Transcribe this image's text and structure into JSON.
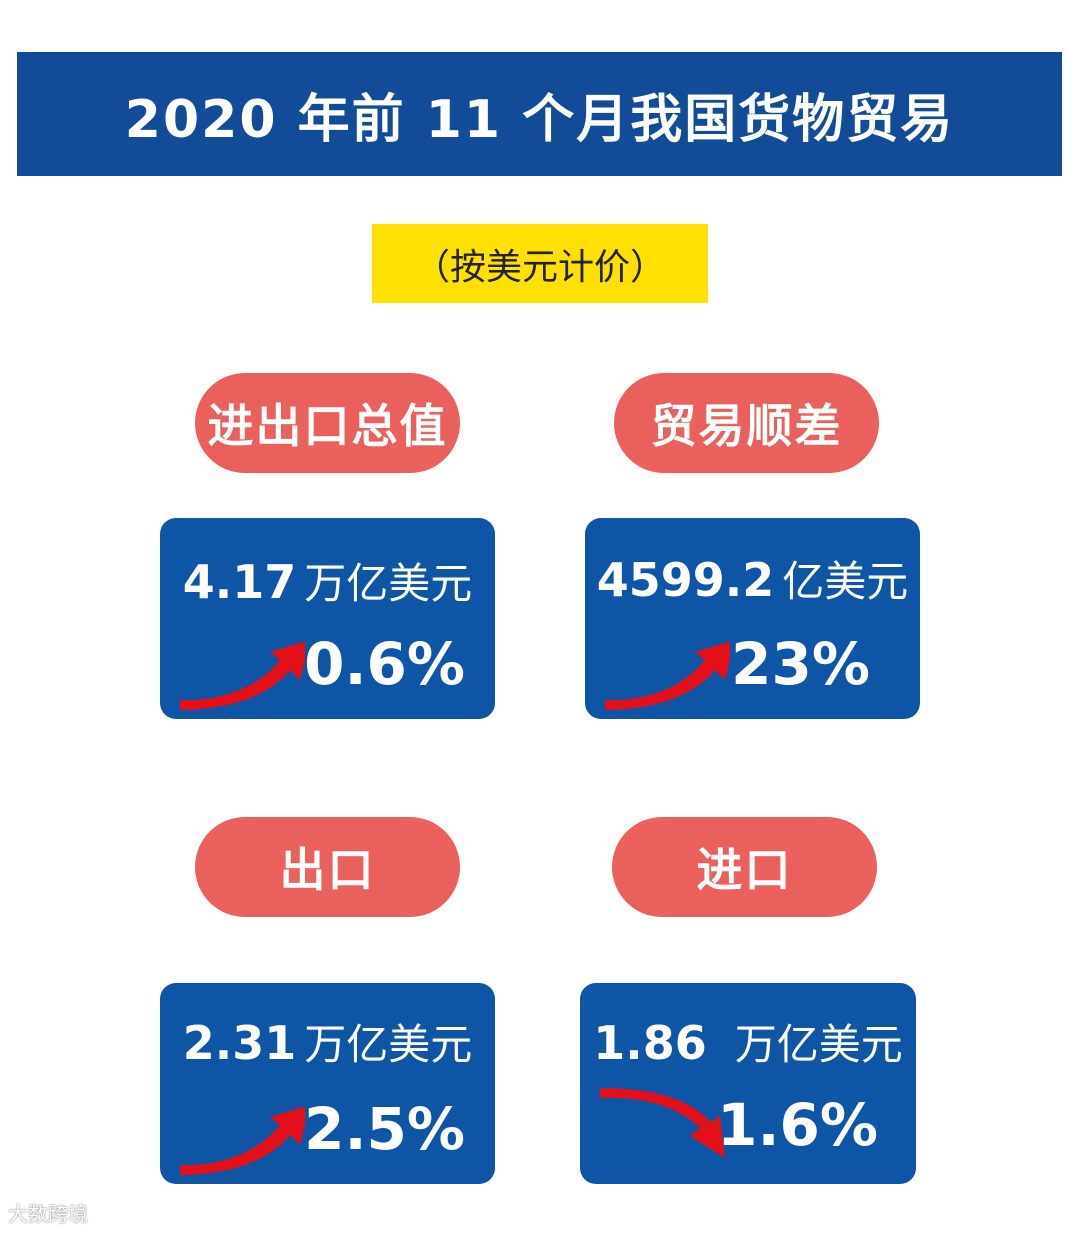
{
  "title": "2020 年前 11 个月我国货物贸易",
  "subtitle": "（按美元计价）",
  "colors": {
    "header": "#124c99",
    "box": "#0e55a5",
    "pill": "#e9605c",
    "highlight": "#ffe100",
    "arrow": "#e3101a"
  },
  "cards": [
    {
      "label": "进出口总值",
      "number": "4.17",
      "unit": "万亿美元",
      "change": "0.6%",
      "direction": "up",
      "icon": "arrow-up-icon"
    },
    {
      "label": "贸易顺差",
      "number": "4599.2",
      "unit": "亿美元",
      "change": "23%",
      "direction": "up",
      "icon": "arrow-up-icon"
    },
    {
      "label": "出口",
      "number": "2.31",
      "unit": "万亿美元",
      "change": "2.5%",
      "direction": "up",
      "icon": "arrow-up-icon"
    },
    {
      "label": "进口",
      "number": "1.86",
      "unit": "万亿美元",
      "change": "1.6%",
      "direction": "down",
      "icon": "arrow-down-icon"
    }
  ],
  "watermark": "大数跨境"
}
